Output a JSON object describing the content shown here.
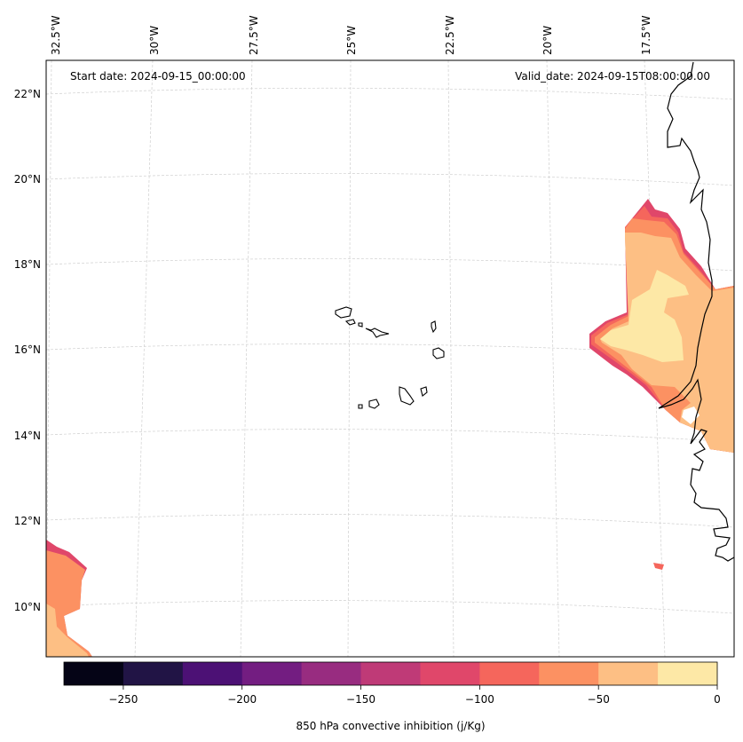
{
  "annotations": {
    "start_date": "Start date: 2024-09-15_00:00:00",
    "valid_date": "Valid_date: 2024-09-15T08:00:00.00"
  },
  "lon_labels": [
    "32.5°W",
    "30°W",
    "27.5°W",
    "25°W",
    "22.5°W",
    "20°W",
    "17.5°W"
  ],
  "lat_labels": [
    "22°N",
    "20°N",
    "18°N",
    "16°N",
    "14°N",
    "12°N",
    "10°N"
  ],
  "colorbar": {
    "label": "850 hPa convective inhibition (j/Kg)",
    "tick_labels": [
      "−250",
      "−200",
      "−150",
      "−100",
      "−50",
      "0"
    ],
    "bins": [
      -275,
      -250,
      -225,
      -200,
      -175,
      -150,
      -125,
      -100,
      -75,
      -50,
      -25,
      0
    ],
    "colors": [
      "#050416",
      "#211445",
      "#4c1175",
      "#731d81",
      "#982c80",
      "#bf3a77",
      "#e0476a",
      "#f5665c",
      "#fc9162",
      "#fdbf84",
      "#fde8a6"
    ]
  }
}
